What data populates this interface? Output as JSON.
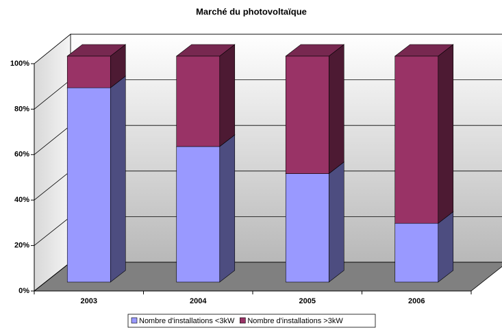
{
  "chart_data": {
    "type": "bar",
    "stacked": true,
    "title": "Marché du photovoltaïque",
    "categories": [
      "2003",
      "2004",
      "2005",
      "2006"
    ],
    "series": [
      {
        "name": "Nombre d'installations <3kW",
        "color": "#9999ff",
        "values": [
          86,
          60,
          48,
          26
        ]
      },
      {
        "name": "Nombre d'installations >3kW",
        "color": "#993366",
        "values": [
          14,
          40,
          52,
          74
        ]
      }
    ],
    "ylim": [
      0,
      100
    ],
    "yticks": [
      {
        "value": 0,
        "label": "0%"
      },
      {
        "value": 20,
        "label": "20%"
      },
      {
        "value": 40,
        "label": "40%"
      },
      {
        "value": 60,
        "label": "60%"
      },
      {
        "value": 80,
        "label": "80%"
      },
      {
        "value": 100,
        "label": "100%"
      }
    ],
    "grid": true,
    "legend": "bottom"
  }
}
